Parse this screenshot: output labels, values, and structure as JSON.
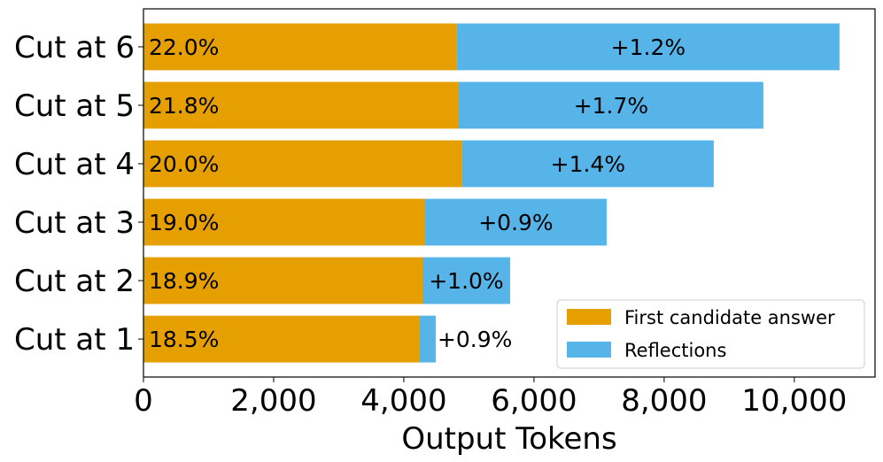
{
  "chart_data": {
    "type": "bar",
    "orientation": "horizontal",
    "stacked": true,
    "categories": [
      "Cut at 1",
      "Cut at 2",
      "Cut at 3",
      "Cut at 4",
      "Cut at 5",
      "Cut at 6"
    ],
    "series": [
      {
        "name": "First candidate answer",
        "color": "#E69F00",
        "values": [
          4245,
          4286,
          4327,
          4898,
          4844,
          4816
        ],
        "labels": [
          "18.5%",
          "18.9%",
          "19.0%",
          "20.0%",
          "21.8%",
          "22.0%"
        ]
      },
      {
        "name": "Reflections",
        "color": "#56B4E9",
        "values": [
          245,
          1347,
          2789,
          3864,
          4680,
          5878
        ],
        "labels": [
          "+0.9%",
          "+1.0%",
          "+0.9%",
          "+1.4%",
          "+1.7%",
          "+1.2%"
        ]
      }
    ],
    "xlabel": "Output Tokens",
    "ylabel": "",
    "xlim": [
      0,
      11240
    ],
    "xticks": [
      0,
      2000,
      4000,
      6000,
      8000,
      10000
    ],
    "xtick_labels": [
      "0",
      "2,000",
      "4,000",
      "6,000",
      "8,000",
      "10,000"
    ],
    "grid": false,
    "legend": "bottom-right"
  }
}
